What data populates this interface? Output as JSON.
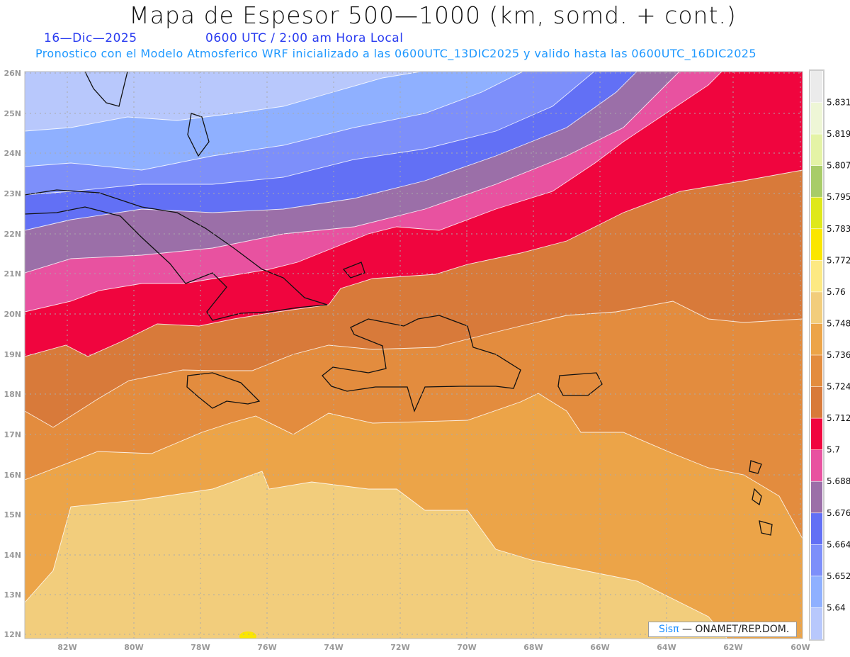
{
  "header": {
    "title": "Mapa de Espesor 500—1000 (km, somd. + cont.)",
    "date": "16—Dic—2025",
    "time": "0600 UTC / 2:00 am Hora Local",
    "description": "Pronostico con el Modelo Atmosferico WRF inicializado a las 0600UTC_13DIC2025 y valido hasta las  0600UTC_16DIC2025"
  },
  "axes": {
    "lon_labels": [
      "82W",
      "80W",
      "78W",
      "76W",
      "74W",
      "72W",
      "70W",
      "68W",
      "66W",
      "64W",
      "62W",
      "60W"
    ],
    "lat_labels": [
      "26N",
      "25N",
      "24N",
      "23N",
      "22N",
      "21N",
      "20N",
      "19N",
      "18N",
      "17N",
      "16N",
      "15N",
      "14N",
      "13N",
      "12N"
    ]
  },
  "colorbar": {
    "labels": [
      "5.831",
      "5.819",
      "5.807",
      "5.795",
      "5.783",
      "5.772",
      "5.76",
      "5.748",
      "5.736",
      "5.724",
      "5.712",
      "5.7",
      "5.688",
      "5.676",
      "5.664",
      "5.652",
      "5.64"
    ],
    "colors_top_to_bottom": [
      "#ebebeb",
      "#eef6d6",
      "#e4f3a6",
      "#a8cc68",
      "#dfe81a",
      "#fbe600",
      "#fde983",
      "#f2cd7c",
      "#eca448",
      "#e38c3e",
      "#d87a3a",
      "#f0053e",
      "#e852a0",
      "#9b6fa8",
      "#6270f5",
      "#7d8ffa",
      "#8fb0ff",
      "#b8c8fc"
    ]
  },
  "credit": {
    "brand": "Sisπ",
    "text": "—  ONAMET/REP.DOM."
  }
}
